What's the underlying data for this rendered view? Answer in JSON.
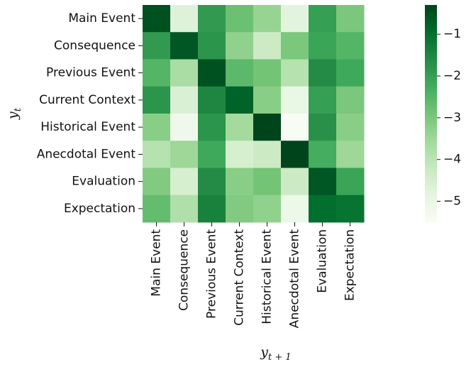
{
  "chart_data": {
    "type": "heatmap",
    "title": "",
    "xlabel": "y_{t+1}",
    "ylabel": "y_t",
    "xlabel_main": "y",
    "xlabel_sub": "t + 1",
    "ylabel_main": "y",
    "ylabel_sub": "t",
    "x_categories": [
      "Main Event",
      "Consequence",
      "Previous Event",
      "Current Context",
      "Historical Event",
      "Anecdotal Event",
      "Evaluation",
      "Expectation"
    ],
    "y_categories": [
      "Main Event",
      "Consequence",
      "Previous Event",
      "Current Context",
      "Historical Event",
      "Anecdotal Event",
      "Evaluation",
      "Expectation"
    ],
    "values": [
      [
        -0.5,
        -4.7,
        -1.9,
        -2.8,
        -3.4,
        -4.8,
        -2.0,
        -3.0
      ],
      [
        -1.9,
        -0.6,
        -1.8,
        -3.3,
        -4.3,
        -3.0,
        -2.1,
        -2.5
      ],
      [
        -2.5,
        -3.7,
        -0.5,
        -2.6,
        -2.9,
        -3.9,
        -1.6,
        -2.2
      ],
      [
        -1.8,
        -4.6,
        -1.5,
        -0.8,
        -3.2,
        -5.0,
        -2.0,
        -3.0
      ],
      [
        -3.2,
        -5.2,
        -1.8,
        -3.6,
        -0.3,
        -5.5,
        -1.7,
        -3.2
      ],
      [
        -3.9,
        -3.5,
        -2.2,
        -4.5,
        -4.3,
        -0.2,
        -2.3,
        -3.5
      ],
      [
        -3.1,
        -4.5,
        -1.6,
        -3.2,
        -2.9,
        -4.3,
        -0.6,
        -2.1
      ],
      [
        -2.7,
        -3.8,
        -1.4,
        -3.1,
        -3.3,
        -5.1,
        -1.0,
        -1.1
      ]
    ],
    "colormap": "Greens (reversed: higher values darker)",
    "vmin": -5.5,
    "vmax": -0.3,
    "colorbar_ticks": [
      -1,
      -2,
      -3,
      -4,
      -5
    ],
    "colorbar_tick_labels": [
      "−1",
      "−2",
      "−3",
      "−4",
      "−5"
    ],
    "grid": false,
    "legend": "colorbar-right"
  }
}
